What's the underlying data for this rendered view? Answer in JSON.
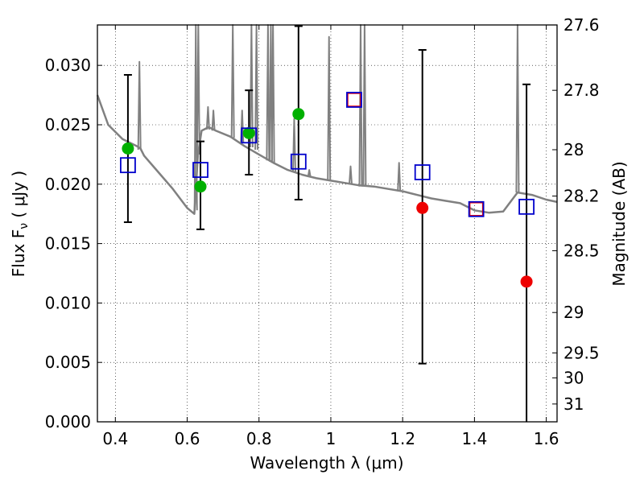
{
  "chart_data": {
    "type": "scatter",
    "xlabel": "Wavelength  λ (μm)",
    "ylabel": "Flux  F",
    "ylabel_sub": "ν",
    "ylabel_unit": " ( μJy )",
    "y2label": "Magnitude (AB)",
    "xlim": [
      0.35,
      1.63
    ],
    "ylim": [
      0.0,
      0.0334
    ],
    "grid": true,
    "x_ticks": [
      0.4,
      0.6,
      0.8,
      1.0,
      1.2,
      1.4,
      1.6
    ],
    "x_tick_labels": [
      "0.4",
      "0.6",
      "0.8",
      "1",
      "1.2",
      "1.4",
      "1.6"
    ],
    "y_ticks": [
      0.0,
      0.005,
      0.01,
      0.015,
      0.02,
      0.025,
      0.03
    ],
    "y_tick_labels": [
      "0.000",
      "0.005",
      "0.010",
      "0.015",
      "0.020",
      "0.025",
      "0.030"
    ],
    "y2_tick_labels": [
      "27.6",
      "27.8",
      "28",
      "28.2",
      "28.5",
      "29",
      "29.5",
      "30",
      "31"
    ],
    "y2_tick_flux": [
      0.0336,
      0.0279,
      0.0229,
      0.019,
      0.0144,
      0.0092,
      0.0058,
      0.0037,
      0.0015
    ],
    "colors": {
      "template": "#808080",
      "model_photometry": "#0000cc",
      "detections": "#00b000",
      "upper_limits": "#ee0000",
      "error_bars": "#000000"
    },
    "series": [
      {
        "kind": "line",
        "x": [
          0.35,
          0.38,
          0.42,
          0.46,
          0.47,
          0.48,
          0.52,
          0.56,
          0.6,
          0.62,
          0.63,
          0.64,
          0.66,
          0.68,
          0.72,
          0.76,
          0.8,
          0.84,
          0.88,
          0.92,
          0.96,
          1.0,
          1.04,
          1.08,
          1.12,
          1.16,
          1.2,
          1.24,
          1.28,
          1.32,
          1.36,
          1.4,
          1.44,
          1.48,
          1.52,
          1.56,
          1.6,
          1.63
        ],
        "y": [
          0.0275,
          0.025,
          0.0238,
          0.0232,
          0.023,
          0.0224,
          0.021,
          0.0196,
          0.018,
          0.0175,
          0.0225,
          0.0245,
          0.0248,
          0.0245,
          0.024,
          0.0232,
          0.0225,
          0.0218,
          0.0212,
          0.0208,
          0.0205,
          0.0203,
          0.0201,
          0.0199,
          0.0198,
          0.0196,
          0.0194,
          0.0191,
          0.0188,
          0.0186,
          0.0184,
          0.0178,
          0.0176,
          0.0177,
          0.0193,
          0.0191,
          0.0187,
          0.0185
        ]
      },
      {
        "kind": "emission_lines",
        "lines": [
          {
            "x": 0.467,
            "top": 0.0303,
            "base": 0.0229
          },
          {
            "x": 0.624,
            "top": 0.0334,
            "base": 0.0178
          },
          {
            "x": 0.631,
            "top": 0.0334,
            "base": 0.0225
          },
          {
            "x": 0.658,
            "top": 0.0265,
            "base": 0.0246
          },
          {
            "x": 0.673,
            "top": 0.0262,
            "base": 0.0245
          },
          {
            "x": 0.727,
            "top": 0.0334,
            "base": 0.0239
          },
          {
            "x": 0.753,
            "top": 0.0262,
            "base": 0.0235
          },
          {
            "x": 0.779,
            "top": 0.0334,
            "base": 0.0231
          },
          {
            "x": 0.793,
            "top": 0.0334,
            "base": 0.0229
          },
          {
            "x": 0.825,
            "top": 0.0334,
            "base": 0.022
          },
          {
            "x": 0.833,
            "top": 0.0334,
            "base": 0.0219
          },
          {
            "x": 0.839,
            "top": 0.0334,
            "base": 0.0218
          },
          {
            "x": 0.898,
            "top": 0.0255,
            "base": 0.021
          },
          {
            "x": 0.94,
            "top": 0.0212,
            "base": 0.0206
          },
          {
            "x": 0.995,
            "top": 0.0324,
            "base": 0.0203
          },
          {
            "x": 1.055,
            "top": 0.0215,
            "base": 0.02
          },
          {
            "x": 1.083,
            "top": 0.0334,
            "base": 0.0198
          },
          {
            "x": 1.094,
            "top": 0.0334,
            "base": 0.0198
          },
          {
            "x": 1.19,
            "top": 0.0218,
            "base": 0.0194
          },
          {
            "x": 1.52,
            "top": 0.0334,
            "base": 0.0193
          }
        ]
      },
      {
        "kind": "points",
        "x": [
          0.435,
          0.637,
          0.772,
          0.91,
          1.255,
          1.545
        ],
        "y": [
          0.023,
          0.0198,
          0.0243,
          0.0259,
          0.018,
          0.0118
        ],
        "yerr_low": [
          0.0168,
          0.0162,
          0.0208,
          0.0187,
          0.0049,
          0.0
        ],
        "yerr_high": [
          0.0292,
          0.0236,
          0.0279,
          0.0333,
          0.0313,
          0.0284
        ],
        "colors": [
          "#00b000",
          "#00b000",
          "#00b000",
          "#00b000",
          "#ee0000",
          "#ee0000"
        ]
      },
      {
        "kind": "model_squares",
        "x": [
          0.435,
          0.637,
          0.772,
          0.91,
          1.065,
          1.255,
          1.405,
          1.545
        ],
        "y": [
          0.0216,
          0.0212,
          0.0241,
          0.0219,
          0.0271,
          0.021,
          0.0179,
          0.0181
        ]
      },
      {
        "kind": "red_squares",
        "x": [
          1.065,
          1.405
        ],
        "y": [
          0.0271,
          0.0179
        ]
      }
    ]
  }
}
